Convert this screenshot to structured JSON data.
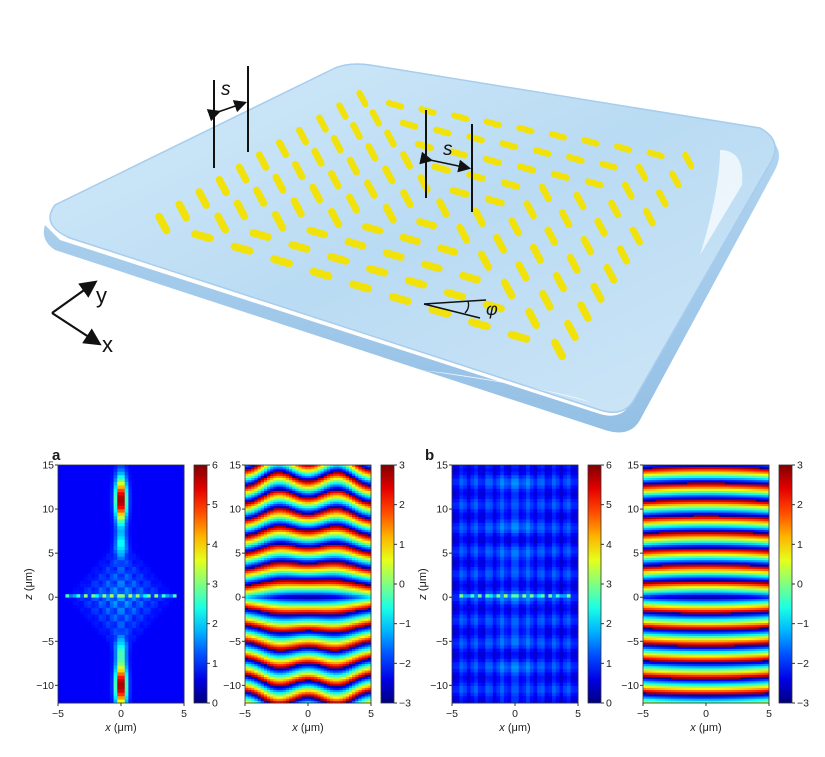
{
  "schematic": {
    "spacing_label": "s",
    "angle_label": "φ",
    "axis_x_label": "x",
    "axis_y_label": "y",
    "plate_color": "#bcdcf3",
    "antenna_color": "#f2e20c"
  },
  "figure": {
    "panel_a": "a",
    "panel_b": "b",
    "x_label_prefix": "x",
    "x_label_unit": "(μm)",
    "z_label_prefix": "z",
    "z_label_unit": "(μm)"
  },
  "chart_data": [
    {
      "type": "heatmap",
      "panel": "a",
      "quantity": "intensity",
      "xlabel": "x (μm)",
      "ylabel": "z (μm)",
      "x_ticks": [
        -5,
        0,
        5
      ],
      "y_ticks": [
        15,
        10,
        5,
        0,
        -5,
        -10
      ],
      "xlim": [
        -5,
        5
      ],
      "ylim": [
        -12,
        15
      ],
      "colorbar_ticks": [
        6,
        5,
        4,
        3,
        2,
        1,
        0
      ],
      "colorbar_range": [
        0,
        6
      ],
      "colormap": "jet",
      "description_features": "two bright foci on axis near z≈11 and z≈-10, diamond pattern around z=0"
    },
    {
      "type": "heatmap",
      "panel": "a",
      "quantity": "phase",
      "xlabel": "x (μm)",
      "ylabel": "",
      "x_ticks": [
        -5,
        0,
        5
      ],
      "y_ticks": [
        15,
        10,
        5,
        0,
        -5,
        -10
      ],
      "xlim": [
        -5,
        5
      ],
      "ylim": [
        -12,
        15
      ],
      "colorbar_ticks": [
        3,
        2,
        1,
        0,
        -1,
        -2,
        -3
      ],
      "colorbar_range": [
        -3,
        3
      ],
      "colormap": "jet"
    },
    {
      "type": "heatmap",
      "panel": "b",
      "quantity": "intensity",
      "xlabel": "x (μm)",
      "ylabel": "z (μm)",
      "x_ticks": [
        -5,
        0,
        5
      ],
      "y_ticks": [
        15,
        10,
        5,
        0,
        -5,
        -10
      ],
      "xlim": [
        -5,
        5
      ],
      "ylim": [
        -12,
        15
      ],
      "colorbar_ticks": [
        6,
        5,
        4,
        3,
        2,
        1,
        0
      ],
      "colorbar_range": [
        0,
        6
      ],
      "colormap": "jet"
    },
    {
      "type": "heatmap",
      "panel": "b",
      "quantity": "phase",
      "xlabel": "x (μm)",
      "ylabel": "",
      "x_ticks": [
        -5,
        0,
        5
      ],
      "y_ticks": [
        15,
        10,
        5,
        0,
        -5,
        -10
      ],
      "xlim": [
        -5,
        5
      ],
      "ylim": [
        -12,
        15
      ],
      "colorbar_ticks": [
        3,
        2,
        1,
        0,
        -1,
        -2,
        -3
      ],
      "colorbar_range": [
        -3,
        3
      ],
      "colormap": "jet"
    }
  ]
}
